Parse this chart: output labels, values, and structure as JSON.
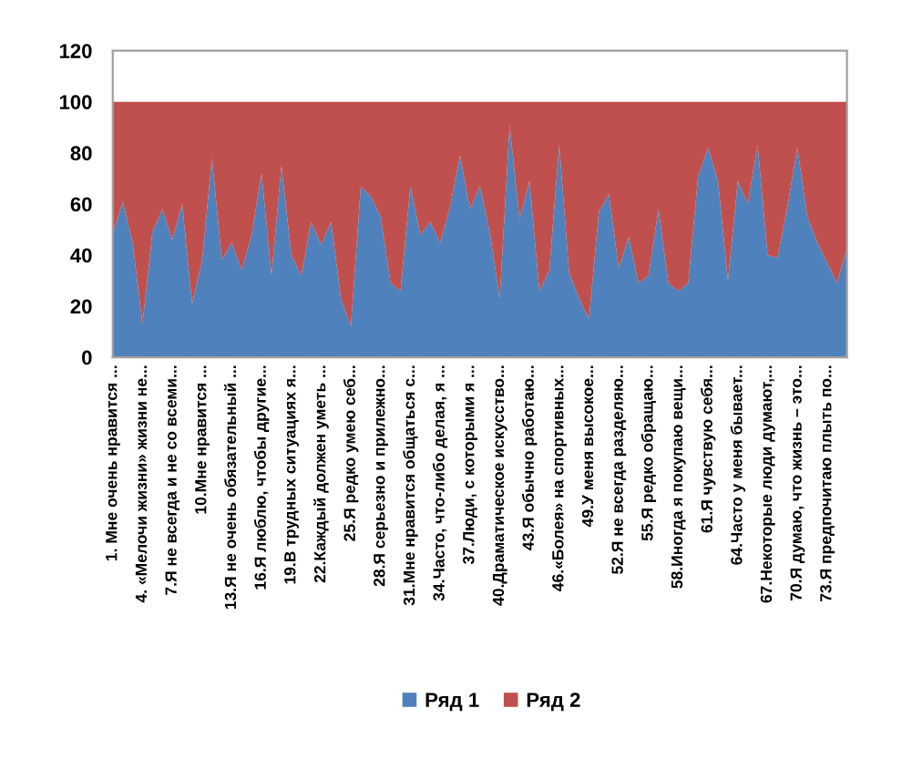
{
  "chart_data": {
    "type": "area",
    "stacked": true,
    "categories": [
      "1. Мне очень нравится ...",
      null,
      null,
      "4. «Мелочи жизни» жизни не...",
      null,
      null,
      "7.Я не всегда и не со всеми...",
      null,
      null,
      "10.Мне нравится ...",
      null,
      null,
      "13.Я не очень обязательный ...",
      null,
      null,
      "16.Я люблю, чтобы другие...",
      null,
      null,
      "19.В трудных ситуациях я...",
      null,
      null,
      "22.Каждый должен уметь ...",
      null,
      null,
      "25.Я редко умею себ...",
      null,
      null,
      "28.Я серьезно и прилежно...",
      null,
      null,
      "31.Мне нравится общаться с...",
      null,
      null,
      "34.Часто, что-либо делая, я ...",
      null,
      null,
      "37.Люди, с которыми я ...",
      null,
      null,
      "40.Драматическое искусство...",
      null,
      null,
      "43.Я обычно работаю...",
      null,
      null,
      "46.«Болея» на спортивных...",
      null,
      null,
      "49.У меня высокое...",
      null,
      null,
      "52.Я не всегда разделяю...",
      null,
      null,
      "55.Я редко обращаю...",
      null,
      null,
      "58.Иногда я покупаю вещи...",
      null,
      null,
      "61.Я чувствую себя...",
      null,
      null,
      "64.Часто у меня бывает...",
      null,
      null,
      "67.Некоторые люди думают,...",
      null,
      null,
      "70.Я думаю, что жизнь – это...",
      null,
      null,
      "73.Я предпочитаю плыть по...",
      null,
      null
    ],
    "series": [
      {
        "name": "Ряд 1",
        "color": "#4f81bd",
        "values": [
          48,
          61,
          45,
          13,
          49,
          58,
          46,
          60,
          21,
          38,
          78,
          38,
          45,
          34,
          48,
          72,
          32,
          75,
          40,
          32,
          53,
          44,
          53,
          23,
          12,
          67,
          63,
          55,
          29,
          26,
          67,
          48,
          53,
          45,
          59,
          79,
          58,
          67,
          49,
          23,
          91,
          54,
          69,
          26,
          34,
          83,
          33,
          23,
          15,
          57,
          64,
          35,
          47,
          29,
          32,
          58,
          29,
          26,
          29,
          71,
          82,
          69,
          30,
          69,
          60,
          83,
          40,
          39,
          59,
          82,
          55,
          45,
          37,
          29,
          43
        ]
      },
      {
        "name": "Ряд 2",
        "color": "#c0504d",
        "values": [
          52,
          39,
          55,
          87,
          51,
          42,
          54,
          40,
          79,
          62,
          22,
          62,
          55,
          66,
          52,
          28,
          68,
          25,
          60,
          68,
          47,
          56,
          47,
          77,
          88,
          33,
          37,
          45,
          71,
          74,
          33,
          52,
          47,
          55,
          41,
          21,
          42,
          33,
          51,
          77,
          9,
          46,
          31,
          74,
          66,
          17,
          67,
          77,
          85,
          43,
          36,
          65,
          53,
          71,
          68,
          42,
          71,
          74,
          71,
          29,
          18,
          31,
          70,
          31,
          40,
          17,
          60,
          61,
          41,
          18,
          45,
          55,
          63,
          71,
          57
        ]
      }
    ],
    "ylim": [
      0,
      120
    ],
    "yticks": [
      0,
      20,
      40,
      60,
      80,
      100,
      120
    ],
    "legend": "bottom"
  }
}
